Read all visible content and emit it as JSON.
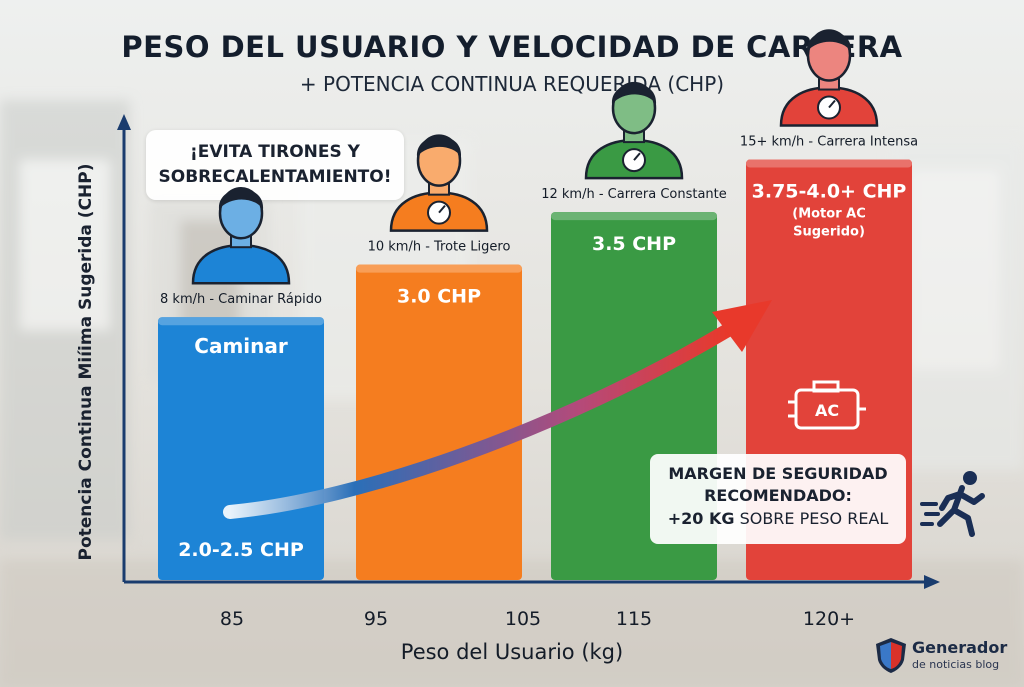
{
  "chart_data": {
    "type": "bar",
    "title": "PESO DEL USUARIO Y VELOCIDAD DE CARRERA",
    "subtitle": "+ POTENCIA CONTINUA REQUERIDA (CHP)",
    "xlabel": "Peso del Usuario (kg)",
    "ylabel": "Potencia Continua Miíima Sugerida (CHP)",
    "x_ticks": [
      "85",
      "95",
      "105",
      "115",
      "120+"
    ],
    "categories": [
      "8 km/h - Caminar Rápido",
      "10 km/h - Trote Ligero",
      "12 km/h - Carrera Constante",
      "15+ km/h - Carrera Intensa"
    ],
    "values": [
      2.5,
      3.0,
      3.5,
      4.0
    ],
    "bar_value_labels": [
      "2.0-2.5 CHP",
      "3.0 CHP",
      "3.5 CHP",
      "3.75-4.0+ CHP"
    ],
    "bar_titles": [
      "Caminar",
      "",
      "",
      ""
    ],
    "bar_notes": [
      "",
      "",
      "",
      "(Motor AC\nSugerido)"
    ],
    "bar_colors": [
      "#1d84d6",
      "#f57d1f",
      "#3a9a44",
      "#e2433a"
    ],
    "ylim": [
      0,
      4.3
    ],
    "grid": false,
    "legend": "none",
    "annotations": {
      "callout": "¡EVITA TIRONES Y\nSOBRECALENTAMIENTO!",
      "motor_badge": "AC",
      "safety_line1": "MARGEN DE SEGURIDAD",
      "safety_line2": "RECOMENDADO:",
      "safety_bold": "+20 KG",
      "safety_rest": " SOBRE PESO REAL"
    }
  },
  "brand": {
    "name": "Generador",
    "tagline": "de noticias blog"
  },
  "icons": {
    "person": "person-avatar-icon",
    "speedometer": "speedometer-icon",
    "trend": "trend-arrow-icon",
    "motor": "ac-motor-icon",
    "runner": "running-person-icon",
    "shield": "shield-logo-icon"
  },
  "colors": {
    "axis": "#1a3c6e",
    "arrow_start": "#1e5fa8",
    "arrow_end": "#e8392b"
  }
}
